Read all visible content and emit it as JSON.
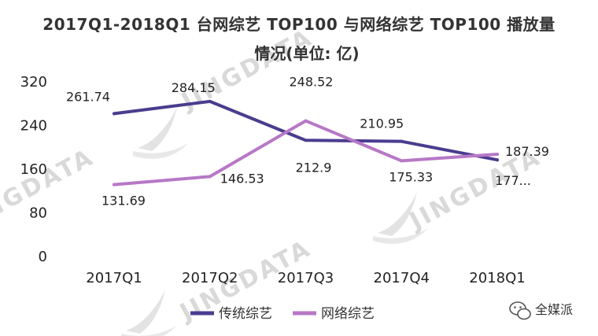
{
  "chart_data": {
    "type": "line",
    "title_line1": "2017Q1-2018Q1 台网综艺 TOP100 与网络综艺 TOP100 播放量",
    "title_line2": "情况(单位: 亿)",
    "categories": [
      "2017Q1",
      "2017Q2",
      "2017Q3",
      "2017Q4",
      "2018Q1"
    ],
    "series": [
      {
        "name": "传统综艺",
        "color": "#4b3c8f",
        "values": [
          261.74,
          284.15,
          212.9,
          210.95,
          177
        ],
        "labels": [
          "261.74",
          "284.15",
          "212.9",
          "210.95",
          "177..."
        ]
      },
      {
        "name": "网络综艺",
        "color": "#b778c6",
        "values": [
          131.69,
          146.53,
          248.52,
          175.33,
          187.39
        ],
        "labels": [
          "131.69",
          "146.53",
          "248.52",
          "175.33",
          "187.39"
        ]
      }
    ],
    "yticks": [
      "320",
      "240",
      "160",
      "80",
      "0"
    ],
    "ylim": [
      0,
      320
    ],
    "grid": false,
    "legend_position": "bottom"
  },
  "watermark": {
    "text": "JINGDATA",
    "color": "#d9d9d9"
  },
  "branding": {
    "icon": "wechat-icon",
    "name": "全媒派"
  }
}
